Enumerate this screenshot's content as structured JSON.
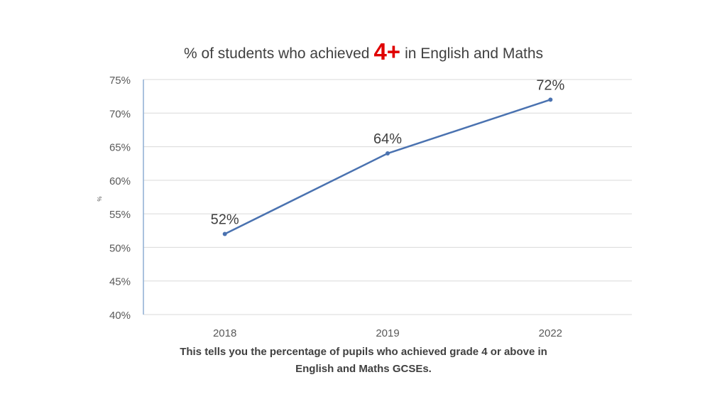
{
  "chart_data": {
    "type": "line",
    "title_prefix": "% of students who achieved",
    "title_highlight": "4+",
    "title_suffix": "in English and Maths",
    "xlabel": "",
    "ylabel": "%",
    "categories": [
      "2018",
      "2019",
      "2022"
    ],
    "series": [
      {
        "values": [
          52,
          64,
          72
        ],
        "labels": [
          "52%",
          "64%",
          "72%"
        ]
      }
    ],
    "ylim": [
      40,
      75
    ],
    "yticks": [
      40,
      45,
      50,
      55,
      60,
      65,
      70,
      75
    ],
    "ytick_labels": [
      "40%",
      "45%",
      "50%",
      "55%",
      "60%",
      "65%",
      "70%",
      "75%"
    ],
    "grid": true,
    "legend": "none"
  },
  "caption": {
    "line1": "This tells you the percentage of pupils who achieved grade 4 or above in",
    "line2": "English and Maths GCSEs."
  },
  "colors": {
    "line": "#4a72b0",
    "highlight": "#e00000",
    "text": "#404040",
    "grid": "#d9d9d9",
    "axis": "#8eaed3"
  }
}
